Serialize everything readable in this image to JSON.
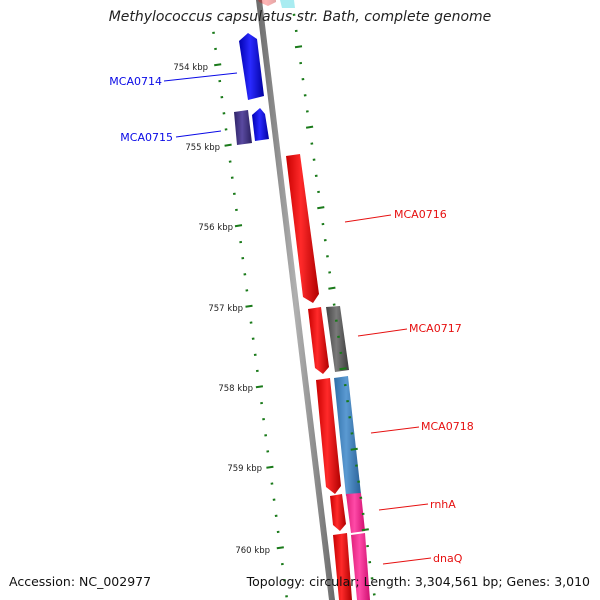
{
  "title": "Methylococcus capsulatus str. Bath, complete genome",
  "accession": "Accession: NC_002977",
  "summary": "Topology: circular; Length: 3,304,561 bp; Genes: 3,010",
  "ticks": [
    {
      "label": "754 kbp"
    },
    {
      "label": "755 kbp"
    },
    {
      "label": "756 kbp"
    },
    {
      "label": "757 kbp"
    },
    {
      "label": "758 kbp"
    },
    {
      "label": "759 kbp"
    },
    {
      "label": "760 kbp"
    }
  ],
  "genes": [
    {
      "label": "MCA0714",
      "color": "#0a0ae6"
    },
    {
      "label": "MCA0715",
      "color": "#0a0ae6"
    },
    {
      "label": "MCA0716",
      "color": "#e61010"
    },
    {
      "label": "MCA0717",
      "color": "#e61010"
    },
    {
      "label": "MCA0718",
      "color": "#e61010"
    },
    {
      "label": "rnhA",
      "color": "#e61010"
    },
    {
      "label": "dnaQ",
      "color": "#e61010"
    }
  ],
  "colors": {
    "backbone": "#8a8a8a",
    "forward_cds": "#ff0000",
    "reverse_cds": "#0000ff",
    "reverse_cds_alt": "#4a3a8c",
    "gray_feature": "#666666",
    "steelblue_feature": "#4a8ac4",
    "pink_feature": "#ff3399",
    "tick_mark": "#1a7a1a",
    "label_forward": "#e61010",
    "label_reverse": "#0a0ae6"
  }
}
